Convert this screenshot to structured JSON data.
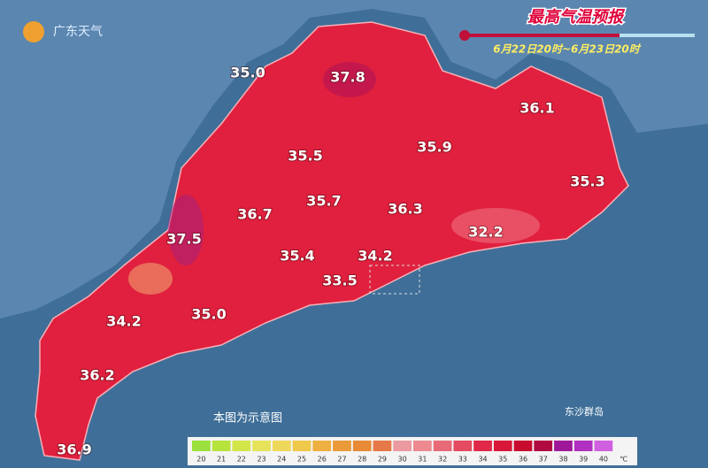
{
  "header": {
    "logo": "广东天气",
    "title": "最高气温预报",
    "subtitle": "6月22日20时~6月23日20时"
  },
  "note": "本图为示意图",
  "islands": "东沙群岛",
  "stations": [
    "35.0",
    "37.8",
    "36.1",
    "35.5",
    "35.9",
    "35.3",
    "36.7",
    "35.7",
    "36.3",
    "37.5",
    "32.2",
    "35.4",
    "34.2",
    "33.5",
    "34.2",
    "35.0",
    "36.2",
    "36.9"
  ],
  "legend": {
    "values": [
      20,
      21,
      22,
      23,
      24,
      25,
      26,
      27,
      28,
      29,
      30,
      31,
      32,
      33,
      34,
      35,
      36,
      37,
      38,
      39,
      40
    ],
    "unit": "℃",
    "colors": [
      "#9be03c",
      "#b6e33c",
      "#d2e64a",
      "#e6e35a",
      "#eed85a",
      "#f0c84a",
      "#eeb040",
      "#eb9a3a",
      "#e88a36",
      "#e77848",
      "#ea9aa0",
      "#ec8a90",
      "#e86a78",
      "#e44a60",
      "#e02848",
      "#d81838",
      "#c80c30",
      "#b00a40",
      "#a0189a",
      "#b030c0",
      "#d060e0"
    ]
  }
}
